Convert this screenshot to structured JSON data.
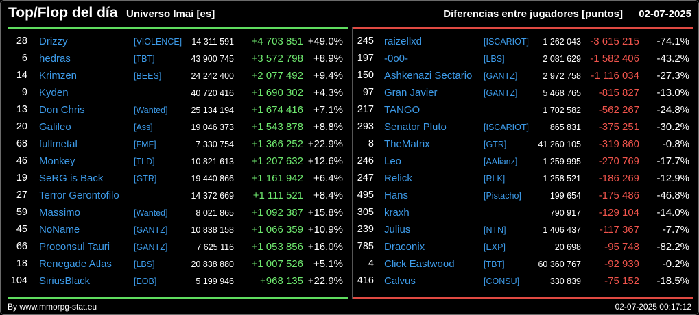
{
  "header": {
    "title": "Top/Flop del día",
    "subtitle": "Universo Imai [es]",
    "diff_title": "Diferencias entre jugadores [puntos]",
    "date": "02-07-2025"
  },
  "colors": {
    "top_accent": "#5fdc5f",
    "flop_accent": "#e04a42",
    "name_link": "#3d9be9"
  },
  "top": [
    {
      "rank": "28",
      "name": "Drizzy",
      "clan": "[VIOLENCE]",
      "points": "14 311 591",
      "diff": "+4 703 851",
      "pct": "+49.0%"
    },
    {
      "rank": "6",
      "name": "hedras",
      "clan": "[TBT]",
      "points": "43 900 745",
      "diff": "+3 572 798",
      "pct": "+8.9%"
    },
    {
      "rank": "14",
      "name": "Krimzen",
      "clan": "[BEES]",
      "points": "24 242 400",
      "diff": "+2 077 492",
      "pct": "+9.4%"
    },
    {
      "rank": "9",
      "name": "Kyden",
      "clan": "",
      "points": "40 720 416",
      "diff": "+1 690 302",
      "pct": "+4.3%"
    },
    {
      "rank": "13",
      "name": "Don Chris",
      "clan": "[Wanted]",
      "points": "25 134 194",
      "diff": "+1 674 416",
      "pct": "+7.1%"
    },
    {
      "rank": "20",
      "name": "Galileo",
      "clan": "[Ass]",
      "points": "19 046 373",
      "diff": "+1 543 878",
      "pct": "+8.8%"
    },
    {
      "rank": "68",
      "name": "fullmetal",
      "clan": "[FMF]",
      "points": "7 330 754",
      "diff": "+1 366 252",
      "pct": "+22.9%"
    },
    {
      "rank": "46",
      "name": "Monkey",
      "clan": "[TLD]",
      "points": "10 821 613",
      "diff": "+1 207 632",
      "pct": "+12.6%"
    },
    {
      "rank": "19",
      "name": "SeRG is Back",
      "clan": "[GTR]",
      "points": "19 440 866",
      "diff": "+1 161 942",
      "pct": "+6.4%"
    },
    {
      "rank": "27",
      "name": "Terror Gerontofilo",
      "clan": "",
      "points": "14 372 669",
      "diff": "+1 111 521",
      "pct": "+8.4%"
    },
    {
      "rank": "59",
      "name": "Massimo",
      "clan": "[Wanted]",
      "points": "8 021 865",
      "diff": "+1 092 387",
      "pct": "+15.8%"
    },
    {
      "rank": "45",
      "name": "NoName",
      "clan": "[GANTZ]",
      "points": "10 838 158",
      "diff": "+1 066 359",
      "pct": "+10.9%"
    },
    {
      "rank": "66",
      "name": "Proconsul Tauri",
      "clan": "[GANTZ]",
      "points": "7 625 116",
      "diff": "+1 053 856",
      "pct": "+16.0%"
    },
    {
      "rank": "18",
      "name": "Renegade Atlas",
      "clan": "[LBS]",
      "points": "20 838 880",
      "diff": "+1 007 526",
      "pct": "+5.1%"
    },
    {
      "rank": "104",
      "name": "SiriusBlack",
      "clan": "[EOB]",
      "points": "5 199 946",
      "diff": "+968 135",
      "pct": "+22.9%"
    }
  ],
  "flop": [
    {
      "rank": "245",
      "name": "raizellxd",
      "clan": "[ISCARIOT]",
      "points": "1 262 043",
      "diff": "-3 615 215",
      "pct": "-74.1%"
    },
    {
      "rank": "197",
      "name": "-0o0-",
      "clan": "[LBS]",
      "points": "2 081 629",
      "diff": "-1 582 406",
      "pct": "-43.2%"
    },
    {
      "rank": "150",
      "name": "Ashkenazi Sectario",
      "clan": "[GANTZ]",
      "points": "2 972 758",
      "diff": "-1 116 034",
      "pct": "-27.3%"
    },
    {
      "rank": "97",
      "name": "Gran Javier",
      "clan": "[GANTZ]",
      "points": "5 468 765",
      "diff": "-815 827",
      "pct": "-13.0%"
    },
    {
      "rank": "217",
      "name": "TANGO",
      "clan": "",
      "points": "1 702 582",
      "diff": "-562 267",
      "pct": "-24.8%"
    },
    {
      "rank": "293",
      "name": "Senator Pluto",
      "clan": "[ISCARIOT]",
      "points": "865 831",
      "diff": "-375 251",
      "pct": "-30.2%"
    },
    {
      "rank": "8",
      "name": "TheMatrix",
      "clan": "[GTR]",
      "points": "41 260 105",
      "diff": "-319 860",
      "pct": "-0.8%"
    },
    {
      "rank": "246",
      "name": "Leo",
      "clan": "[AAlianz]",
      "points": "1 259 995",
      "diff": "-270 769",
      "pct": "-17.7%"
    },
    {
      "rank": "247",
      "name": "Relick",
      "clan": "[RLK]",
      "points": "1 258 521",
      "diff": "-186 269",
      "pct": "-12.9%"
    },
    {
      "rank": "495",
      "name": "Hans",
      "clan": "[Pistacho]",
      "points": "199 654",
      "diff": "-175 486",
      "pct": "-46.8%"
    },
    {
      "rank": "305",
      "name": "kraxh",
      "clan": "",
      "points": "790 917",
      "diff": "-129 104",
      "pct": "-14.0%"
    },
    {
      "rank": "239",
      "name": "Julius",
      "clan": "[NTN]",
      "points": "1 406 437",
      "diff": "-117 367",
      "pct": "-7.7%"
    },
    {
      "rank": "785",
      "name": "Draconix",
      "clan": "[EXP]",
      "points": "20 698",
      "diff": "-95 748",
      "pct": "-82.2%"
    },
    {
      "rank": "4",
      "name": "Click Eastwood",
      "clan": "[TBT]",
      "points": "60 360 767",
      "diff": "-92 939",
      "pct": "-0.2%"
    },
    {
      "rank": "416",
      "name": "Calvus",
      "clan": "[CONSU]",
      "points": "330 839",
      "diff": "-75 152",
      "pct": "-18.5%"
    }
  ],
  "footer": {
    "credit": "By www.mmorpg-stat.eu",
    "timestamp": "02-07-2025 00:17:12"
  }
}
